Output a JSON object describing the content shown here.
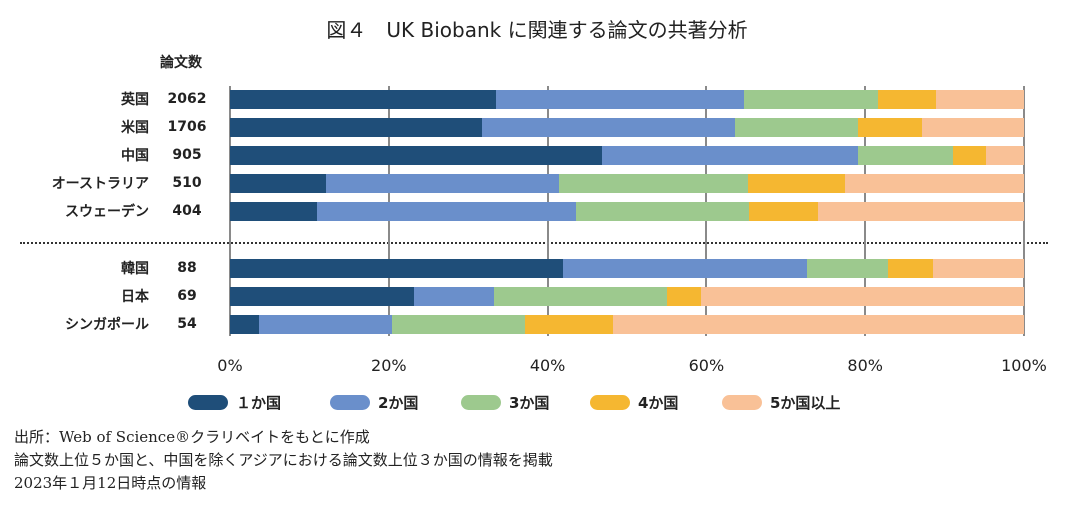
{
  "chart_data": {
    "type": "bar",
    "orientation": "horizontal",
    "stacked": "100%",
    "title": "図４　UK Biobank に関連する論文の共著分析",
    "count_header": "論文数",
    "categories": [
      "英国",
      "米国",
      "中国",
      "オーストラリア",
      "スウェーデン",
      "韓国",
      "日本",
      "シンガポール"
    ],
    "paper_counts": [
      "2062",
      "1706",
      "905",
      "510",
      "404",
      "88",
      "69",
      "54"
    ],
    "series": [
      {
        "name": "１か国",
        "color": "#1f4e79",
        "values": [
          33.5,
          31.8,
          46.9,
          12.1,
          11.0,
          42.0,
          23.2,
          3.7
        ]
      },
      {
        "name": "2か国",
        "color": "#6a8fcb",
        "values": [
          31.2,
          31.8,
          32.2,
          29.3,
          32.6,
          30.7,
          10.1,
          16.7
        ]
      },
      {
        "name": "3か国",
        "color": "#9dc98e",
        "values": [
          16.9,
          15.5,
          11.9,
          23.8,
          21.8,
          10.2,
          21.7,
          16.7
        ]
      },
      {
        "name": "4か国",
        "color": "#f5b731",
        "values": [
          7.3,
          8.1,
          4.2,
          12.2,
          8.7,
          5.7,
          4.3,
          11.1
        ]
      },
      {
        "name": "5か国以上",
        "color": "#f9c197",
        "values": [
          11.1,
          12.8,
          4.8,
          22.6,
          25.9,
          11.4,
          40.7,
          51.8
        ]
      }
    ],
    "xlim": [
      0,
      100
    ],
    "xticks": [
      "0%",
      "20%",
      "40%",
      "60%",
      "80%",
      "100%"
    ],
    "grid": true,
    "legend_position": "bottom"
  },
  "notes": [
    "出所：Web of Science®クラリベイトをもとに作成",
    "論文数上位５か国と、中国を除くアジアにおける論文数上位３か国の情報を掲載",
    "2023年１月12日時点の情報"
  ]
}
